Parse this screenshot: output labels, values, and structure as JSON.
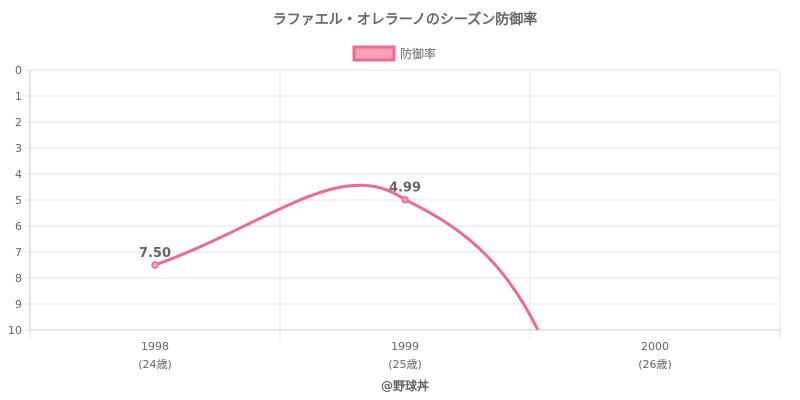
{
  "chart_data": {
    "type": "line",
    "title": "ラファエル・オレラーノのシーズン防御率",
    "x": [
      "1998",
      "1999",
      "2000"
    ],
    "x_sublabels": [
      "(24歳)",
      "(25歳)",
      "(26歳)"
    ],
    "series": [
      {
        "name": "防御率",
        "values": [
          7.5,
          4.99,
          null
        ],
        "color": "#f06a8c",
        "fill": "#f7a1b6"
      }
    ],
    "data_labels": [
      "7.50",
      "4.99"
    ],
    "ylim": [
      0,
      10
    ],
    "y_reversed": true,
    "y_ticks": [
      "0",
      "1",
      "2",
      "3",
      "4",
      "5",
      "6",
      "7",
      "8",
      "9",
      "10"
    ],
    "grid": true,
    "legend": "top-center"
  },
  "credit": "@野球丼"
}
